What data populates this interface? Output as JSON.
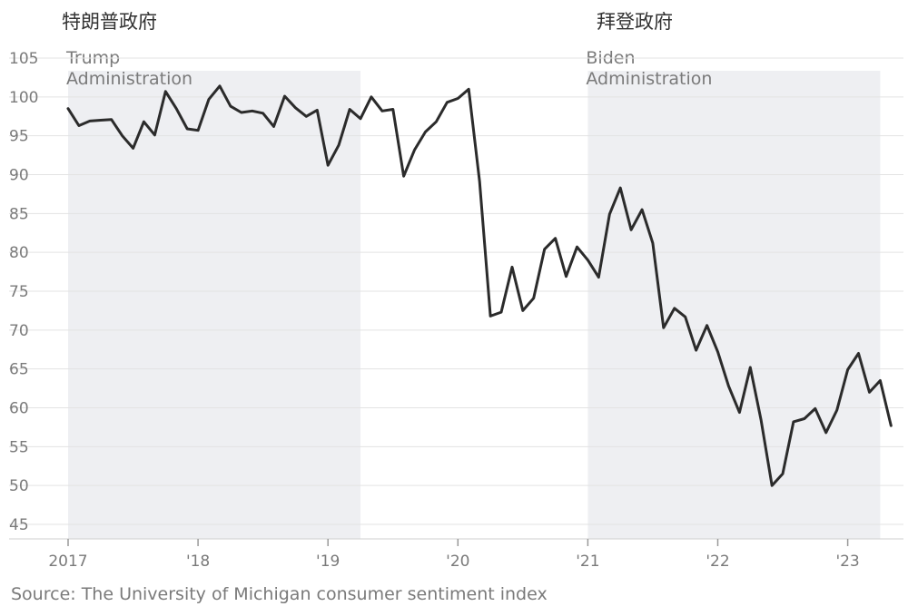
{
  "header": {
    "trump_label_cn": "特朗普政府",
    "biden_label_cn": "拜登政府"
  },
  "source": "Source: The University of Michigan consumer sentiment index",
  "colors": {
    "line": "#2b2b2b",
    "shade": "#eeeff2",
    "grid": "#e3e3e3",
    "text": "#7a7a7a"
  },
  "chart_data": {
    "type": "line",
    "title": "",
    "xlabel": "",
    "ylabel": "",
    "ylim": [
      45,
      105
    ],
    "yticks": [
      105,
      100,
      95,
      90,
      85,
      80,
      75,
      70,
      65,
      60,
      55,
      50,
      45
    ],
    "xlim": [
      2017.0,
      2023.4
    ],
    "xticks": [
      {
        "value": 2017,
        "label": "2017"
      },
      {
        "value": 2018,
        "label": "'18"
      },
      {
        "value": 2019,
        "label": "'19"
      },
      {
        "value": 2020,
        "label": "'20"
      },
      {
        "value": 2021,
        "label": "'21"
      },
      {
        "value": 2022,
        "label": "'22"
      },
      {
        "value": 2023,
        "label": "'23"
      }
    ],
    "shaded_periods": [
      {
        "label_line1": "Trump",
        "label_line2": "Administration",
        "start": 2017.0,
        "end": 2019.25
      },
      {
        "label_line1": "Biden",
        "label_line2": "Administration",
        "start": 2021.0,
        "end": 2023.25
      }
    ],
    "series": [
      {
        "x": [
          2017.0,
          2017.083,
          2017.167,
          2017.25,
          2017.333,
          2017.417,
          2017.5,
          2017.583,
          2017.667,
          2017.75,
          2017.833,
          2017.917,
          2018.0,
          2018.083,
          2018.167,
          2018.25,
          2018.333,
          2018.417,
          2018.5,
          2018.583,
          2018.667,
          2018.75,
          2018.833,
          2018.917,
          2019.0,
          2019.083,
          2019.167,
          2019.25,
          2019.333,
          2019.417,
          2019.5,
          2019.583,
          2019.667,
          2019.75,
          2019.833,
          2019.917,
          2020.0,
          2020.083,
          2020.167,
          2020.25,
          2020.333,
          2020.417,
          2020.5,
          2020.583,
          2020.667,
          2020.75,
          2020.833,
          2020.917,
          2021.0,
          2021.083,
          2021.167,
          2021.25,
          2021.333,
          2021.417,
          2021.5,
          2021.583,
          2021.667,
          2021.75,
          2021.833,
          2021.917,
          2022.0,
          2022.083,
          2022.167,
          2022.25,
          2022.333,
          2022.417,
          2022.5,
          2022.583,
          2022.667,
          2022.75,
          2022.833,
          2022.917,
          2023.0,
          2023.083,
          2023.167,
          2023.25,
          2023.333
        ],
        "values": [
          98.5,
          96.3,
          96.9,
          97.0,
          97.1,
          95.0,
          93.4,
          96.8,
          95.1,
          100.7,
          98.5,
          95.9,
          95.7,
          99.7,
          101.4,
          98.8,
          98.0,
          98.2,
          97.9,
          96.2,
          100.1,
          98.6,
          97.5,
          98.3,
          91.2,
          93.8,
          98.4,
          97.2,
          100.0,
          98.2,
          98.4,
          89.8,
          93.2,
          95.5,
          96.8,
          99.3,
          99.8,
          101.0,
          89.1,
          71.8,
          72.3,
          78.1,
          72.5,
          74.1,
          80.4,
          81.8,
          76.9,
          80.7,
          79.0,
          76.8,
          84.9,
          88.3,
          82.9,
          85.5,
          81.2,
          70.3,
          72.8,
          71.7,
          67.4,
          70.6,
          67.2,
          62.8,
          59.4,
          65.2,
          58.4,
          50.0,
          51.5,
          58.2,
          58.6,
          59.9,
          56.8,
          59.7,
          64.9,
          67.0,
          62.0,
          63.5,
          57.7
        ]
      }
    ]
  }
}
